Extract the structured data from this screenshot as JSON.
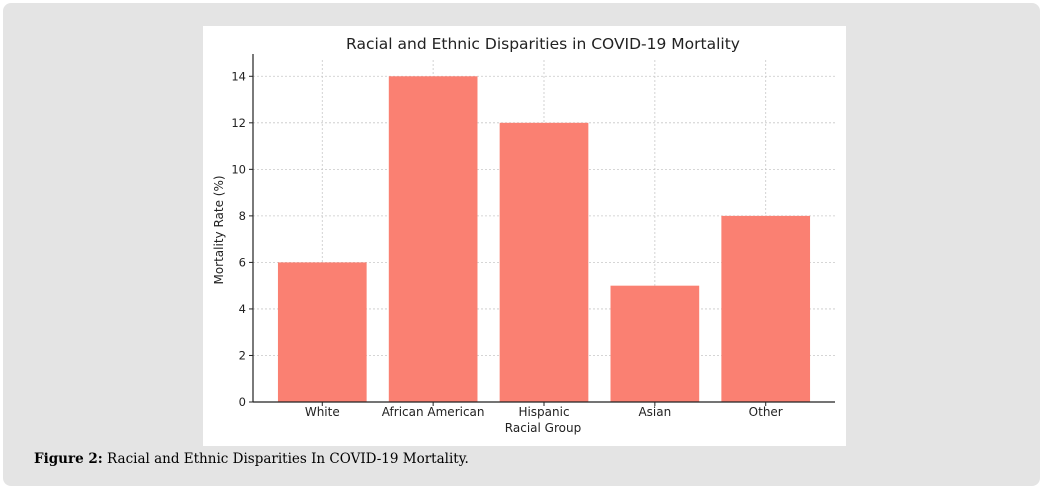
{
  "chart_data": {
    "type": "bar",
    "title": "Racial and Ethnic Disparities in COVID-19 Mortality",
    "xlabel": "Racial Group",
    "ylabel": "Mortality Rate (%)",
    "categories": [
      "White",
      "African American",
      "Hispanic",
      "Asian",
      "Other"
    ],
    "values": [
      6,
      14,
      12,
      5,
      8
    ],
    "ylim": [
      0,
      14.7
    ],
    "yticks": [
      0,
      2,
      4,
      6,
      8,
      10,
      12,
      14
    ],
    "grid": true,
    "bar_color": "#fa8072"
  },
  "caption": {
    "label": "Figure 2:",
    "text": "Racial and Ethnic Disparities In COVID-19 Mortality."
  }
}
